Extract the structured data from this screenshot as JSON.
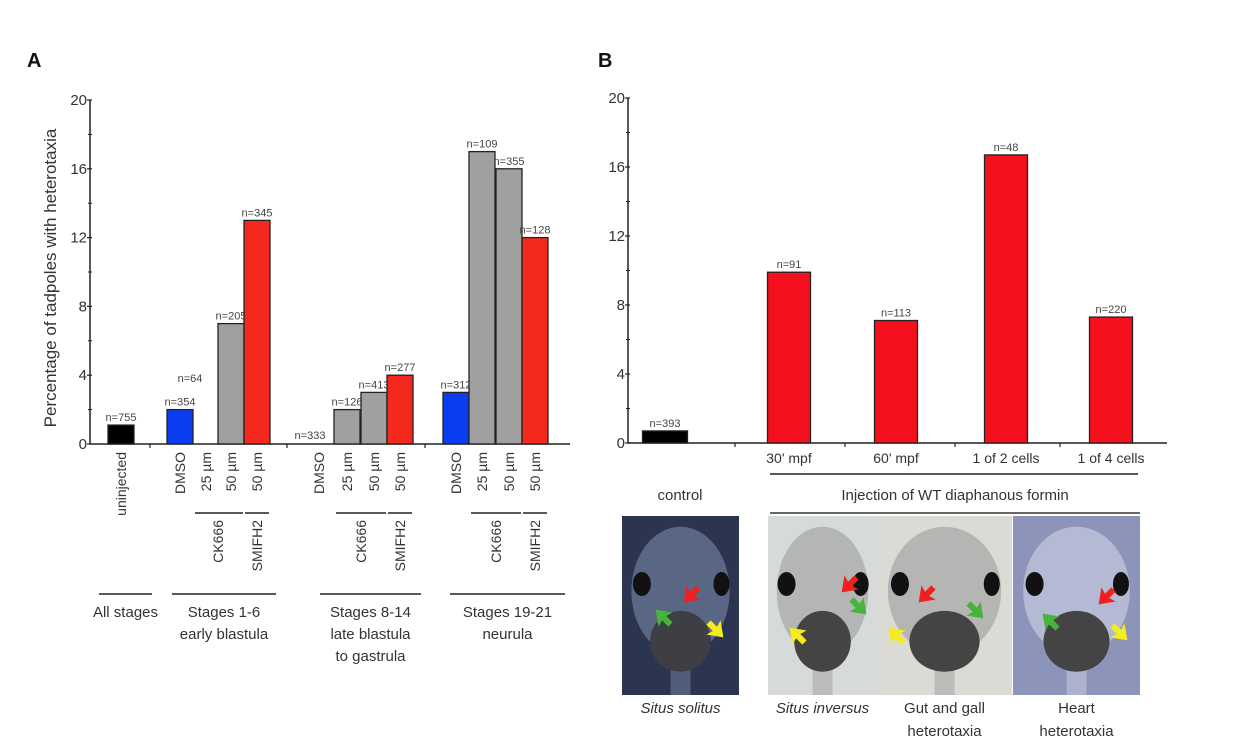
{
  "figure": {
    "panels": [
      "A",
      "B"
    ]
  },
  "chart_data": [
    {
      "panel": "A",
      "type": "bar",
      "title": "",
      "ylabel": "Percentage of tadpoles with heterotaxia",
      "xlabel": "",
      "ylim": [
        0,
        20
      ],
      "yticks": [
        0,
        4,
        8,
        12,
        16,
        20
      ],
      "grid": false,
      "groups": [
        {
          "label_lines": [
            "All stages"
          ],
          "bars": [
            {
              "category": "uninjected",
              "treatment": "",
              "value": 1.1,
              "n_label": "n=755",
              "color": "#000000"
            }
          ]
        },
        {
          "label_lines": [
            "Stages 1-6",
            "early blastula"
          ],
          "bars": [
            {
              "category": "DMSO",
              "treatment": "",
              "value": 2.0,
              "n_label": "n=354",
              "color": "#0a3cf0"
            },
            {
              "category": "25 µm",
              "treatment": "CK666",
              "value": 0,
              "n_label": "n=64",
              "color": "#a0a0a0"
            },
            {
              "category": "50 µm",
              "treatment": "CK666",
              "value": 7.0,
              "n_label": "n=205",
              "color": "#a0a0a0"
            },
            {
              "category": "50 µm",
              "treatment": "SMIFH2",
              "value": 13.0,
              "n_label": "n=345",
              "color": "#f5281e"
            }
          ]
        },
        {
          "label_lines": [
            "Stages 8-14",
            "late blastula",
            "to gastrula"
          ],
          "bars": [
            {
              "category": "DMSO",
              "treatment": "",
              "value": 0,
              "n_label": "n=333",
              "color": "#0a3cf0"
            },
            {
              "category": "25 µm",
              "treatment": "CK666",
              "value": 2.0,
              "n_label": "n=126",
              "color": "#a0a0a0"
            },
            {
              "category": "50 µm",
              "treatment": "CK666",
              "value": 3.0,
              "n_label": "n=413",
              "color": "#a0a0a0"
            },
            {
              "category": "50 µm",
              "treatment": "SMIFH2",
              "value": 4.0,
              "n_label": "n=277",
              "color": "#f5281e"
            }
          ]
        },
        {
          "label_lines": [
            "Stages 19-21",
            "neurula"
          ],
          "bars": [
            {
              "category": "DMSO",
              "treatment": "",
              "value": 3.0,
              "n_label": "n=312",
              "color": "#0a3cf0"
            },
            {
              "category": "25 µm",
              "treatment": "CK666",
              "value": 17.0,
              "n_label": "n=109",
              "color": "#a0a0a0"
            },
            {
              "category": "50 µm",
              "treatment": "CK666",
              "value": 16.0,
              "n_label": "n=355",
              "color": "#a0a0a0"
            },
            {
              "category": "50 µm",
              "treatment": "SMIFH2",
              "value": 12.0,
              "n_label": "n=128",
              "color": "#f5281e"
            }
          ]
        }
      ],
      "treatment_labels": {
        "ck": "CK666",
        "sm": "SMIFH2"
      }
    },
    {
      "panel": "B",
      "type": "bar",
      "title": "",
      "ylabel": "",
      "xlabel": "",
      "ylim": [
        0,
        20
      ],
      "yticks": [
        0,
        4,
        8,
        12,
        16,
        20
      ],
      "grid": false,
      "categories": [
        "control",
        "30' mpf",
        "60' mpf",
        "1 of 2 cells",
        "1 of 4 cells"
      ],
      "tick_labels": [
        "",
        "30' mpf",
        "60' mpf",
        "1 of 2 cells",
        "1 of 4 cells"
      ],
      "values": [
        0.7,
        9.9,
        7.1,
        16.7,
        7.3
      ],
      "n_labels": [
        "n=393",
        "n=91",
        "n=113",
        "n=48",
        "n=220"
      ],
      "colors": [
        "#000000",
        "#f5101e",
        "#f5101e",
        "#f5101e",
        "#f5101e"
      ],
      "group_labels": {
        "control": "control",
        "injection": "Injection of WT diaphanous formin"
      }
    }
  ],
  "images": [
    {
      "caption_lines": [
        "Situs solitus"
      ],
      "italic": true,
      "background": "#2b3550",
      "arrows": [
        "red",
        "green",
        "yellow"
      ]
    },
    {
      "caption_lines": [
        "Situs inversus"
      ],
      "italic": true,
      "background": "#d7dadb",
      "arrows": [
        "red",
        "green",
        "yellow"
      ]
    },
    {
      "caption_lines": [
        "Gut and gall",
        "heterotaxia"
      ],
      "italic": false,
      "background": "#dcdad4",
      "arrows": [
        "red",
        "green",
        "yellow"
      ]
    },
    {
      "caption_lines": [
        "Heart",
        "heterotaxia"
      ],
      "italic": false,
      "background": "#8d94ba",
      "arrows": [
        "red",
        "green",
        "yellow"
      ]
    }
  ],
  "arrow_colors": {
    "red": "#f02020",
    "green": "#46b43c",
    "yellow": "#f5ec1e"
  }
}
